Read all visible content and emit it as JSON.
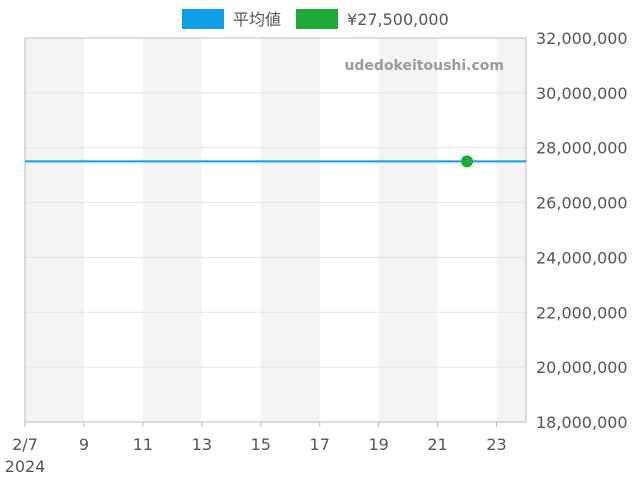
{
  "chart_data": {
    "type": "line",
    "xlabel": "",
    "ylabel": "",
    "watermark": "udedokeitoushi.com",
    "x_range": [
      "2024-02-07",
      "2024-02-24"
    ],
    "xlim": [
      "2024-02-07",
      "2024-02-24"
    ],
    "ylim": [
      18000000,
      32000000
    ],
    "grid": true,
    "legend_position": "top-center",
    "colors": {
      "average": "#0f9ee6",
      "point": "#1faa3a",
      "band": "#f4f4f4",
      "axis": "#bbbbbb",
      "grid": "#e3e3e3",
      "text": "#555555",
      "watermark": "#9a9a9a"
    },
    "x_ticks": [
      {
        "date": "2024-02-07",
        "label": "2/7",
        "sublabel": "2024"
      },
      {
        "date": "2024-02-09",
        "label": "9"
      },
      {
        "date": "2024-02-11",
        "label": "11"
      },
      {
        "date": "2024-02-13",
        "label": "13"
      },
      {
        "date": "2024-02-15",
        "label": "15"
      },
      {
        "date": "2024-02-17",
        "label": "17"
      },
      {
        "date": "2024-02-19",
        "label": "19"
      },
      {
        "date": "2024-02-21",
        "label": "21"
      },
      {
        "date": "2024-02-23",
        "label": "23"
      }
    ],
    "y_ticks": [
      {
        "value": 18000000,
        "label": "18,000,000"
      },
      {
        "value": 20000000,
        "label": "20,000,000"
      },
      {
        "value": 22000000,
        "label": "22,000,000"
      },
      {
        "value": 24000000,
        "label": "24,000,000"
      },
      {
        "value": 26000000,
        "label": "26,000,000"
      },
      {
        "value": 28000000,
        "label": "28,000,000"
      },
      {
        "value": 30000000,
        "label": "30,000,000"
      },
      {
        "value": 32000000,
        "label": "32,000,000"
      }
    ],
    "series": [
      {
        "name": "平均値",
        "type": "line",
        "x": [
          "2024-02-07",
          "2024-02-24"
        ],
        "values": [
          27500000,
          27500000
        ]
      },
      {
        "name": "¥27,500,000",
        "type": "scatter",
        "x": [
          "2024-02-22"
        ],
        "values": [
          27500000
        ]
      }
    ]
  }
}
